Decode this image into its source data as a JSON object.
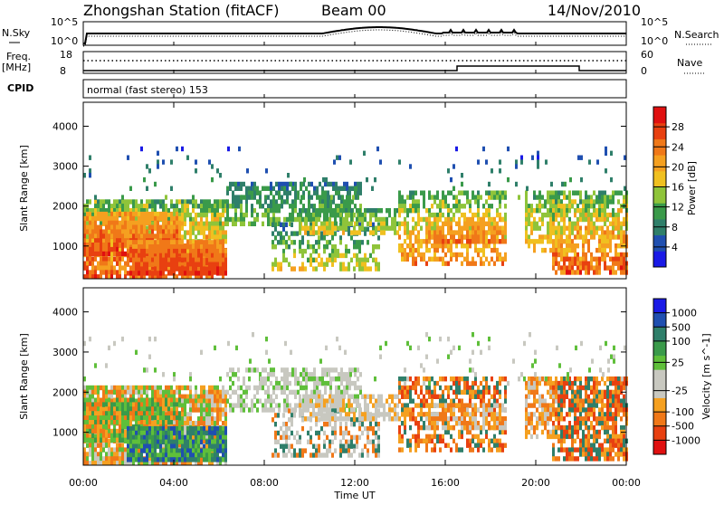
{
  "header": {
    "station": "Zhongshan Station (fitACF)",
    "beam": "Beam 00",
    "date": "14/Nov/2010"
  },
  "strips": {
    "nsky_label": "N.Sky",
    "nsearch_label": "N.Search",
    "nsky_ticks": [
      "10^5",
      "10^0"
    ],
    "nsearch_ticks": [
      "10^5",
      "10^0"
    ],
    "freq_label": "Freq.",
    "freq_unit": "[MHz]",
    "freq_ticks": [
      "18",
      "8"
    ],
    "nave_label": "Nave",
    "nave_ticks": [
      "60",
      "0"
    ],
    "cpid_label": "CPID",
    "cpid_text": "normal (fast stereo) 153"
  },
  "colors": {
    "power": [
      "#1a1ae6",
      "#1f4fb0",
      "#2f7f6a",
      "#3a9a4a",
      "#8fc43a",
      "#f0c020",
      "#f5a020",
      "#f07818",
      "#e84010",
      "#e01010"
    ],
    "velocity": [
      "#e01010",
      "#e84010",
      "#f07818",
      "#f5a020",
      "#c8c8c0",
      "#c8c8c0",
      "#5fbf3a",
      "#3a9a4a",
      "#2f7f6a",
      "#1f4fb0",
      "#1a1ae6"
    ]
  },
  "chart_data": [
    {
      "type": "heatmap",
      "name": "power",
      "ylabel": "Slant Range [km]",
      "yticks": [
        "1000",
        "2000",
        "3000",
        "4000"
      ],
      "ylim": [
        180,
        4600
      ],
      "colorbar_label": "Power [dB]",
      "colorbar_ticks": [
        "4",
        "8",
        "12",
        "16",
        "20",
        "24",
        "28"
      ],
      "colorbar_range": [
        0,
        32
      ]
    },
    {
      "type": "heatmap",
      "name": "velocity",
      "ylabel": "Slant Range [km]",
      "yticks": [
        "1000",
        "2000",
        "3000",
        "4000"
      ],
      "ylim": [
        180,
        4600
      ],
      "colorbar_label": "Velocity [m s^-1]",
      "colorbar_ticks": [
        "-1000",
        "-500",
        "-100",
        "-25",
        "25",
        "100",
        "500",
        "1000"
      ]
    }
  ],
  "time_axis": {
    "ticks": [
      "00:00",
      "04:00",
      "08:00",
      "12:00",
      "16:00",
      "20:00",
      "00:00"
    ],
    "label": "Time UT"
  }
}
